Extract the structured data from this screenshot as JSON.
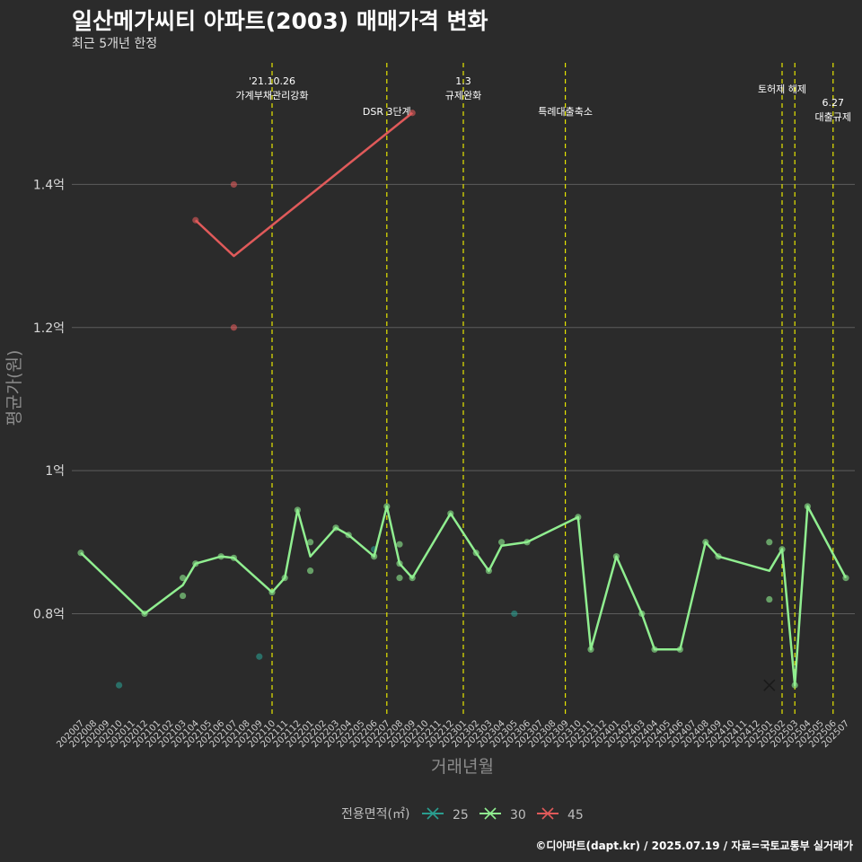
{
  "title": "일산메가씨티 아파트(2003) 매매가격 변화",
  "subtitle": "최근 5개년 한정",
  "footer": "©디아파트(dapt.kr) / 2025.07.19 / 자료=국토교통부 실거래가",
  "chart_data": {
    "type": "line",
    "xlabel": "거래년월",
    "ylabel": "평균가(원)",
    "ylim": [
      0.66,
      1.58
    ],
    "yticks": [
      0.8,
      1.0,
      1.2,
      1.4
    ],
    "ytick_labels": [
      "0.8억",
      "1억",
      "1.2억",
      "1.4억"
    ],
    "grid": true,
    "categories": [
      "202007",
      "202008",
      "202009",
      "202010",
      "202011",
      "202012",
      "202101",
      "202102",
      "202103",
      "202104",
      "202105",
      "202106",
      "202107",
      "202108",
      "202109",
      "202110",
      "202111",
      "202112",
      "202201",
      "202202",
      "202203",
      "202204",
      "202205",
      "202206",
      "202207",
      "202208",
      "202209",
      "202210",
      "202211",
      "202212",
      "202301",
      "202302",
      "202303",
      "202304",
      "202305",
      "202306",
      "202307",
      "202308",
      "202309",
      "202310",
      "202311",
      "202312",
      "202401",
      "202402",
      "202403",
      "202404",
      "202405",
      "202406",
      "202407",
      "202408",
      "202409",
      "202410",
      "202411",
      "202412",
      "202501",
      "202502",
      "202503",
      "202504",
      "202505",
      "202506",
      "202507"
    ],
    "legend_title": "전용면적(㎡)",
    "legend_position": "bottom",
    "series": [
      {
        "name": "25",
        "color": "#2a9d8f",
        "line": [],
        "points": [
          [
            "202010",
            0.7
          ],
          [
            "202109",
            0.74
          ],
          [
            "202206",
            0.89
          ],
          [
            "202305",
            0.8
          ]
        ]
      },
      {
        "name": "30",
        "color": "#90ee90",
        "line": [
          [
            "202007",
            0.885
          ],
          [
            "202012",
            0.8
          ],
          [
            "202103",
            0.84
          ],
          [
            "202104",
            0.87
          ],
          [
            "202106",
            0.88
          ],
          [
            "202107",
            0.878
          ],
          [
            "202110",
            0.83
          ],
          [
            "202111",
            0.85
          ],
          [
            "202112",
            0.945
          ],
          [
            "202201",
            0.88
          ],
          [
            "202203",
            0.92
          ],
          [
            "202204",
            0.91
          ],
          [
            "202206",
            0.88
          ],
          [
            "202207",
            0.95
          ],
          [
            "202208",
            0.87
          ],
          [
            "202209",
            0.85
          ],
          [
            "202212",
            0.94
          ],
          [
            "202302",
            0.885
          ],
          [
            "202303",
            0.86
          ],
          [
            "202304",
            0.895
          ],
          [
            "202306",
            0.9
          ],
          [
            "202310",
            0.935
          ],
          [
            "202311",
            0.75
          ],
          [
            "202401",
            0.88
          ],
          [
            "202403",
            0.8
          ],
          [
            "202404",
            0.75
          ],
          [
            "202406",
            0.75
          ],
          [
            "202408",
            0.9
          ],
          [
            "202409",
            0.88
          ],
          [
            "202501",
            0.86
          ],
          [
            "202502",
            0.89
          ],
          [
            "202503",
            0.7
          ],
          [
            "202504",
            0.95
          ],
          [
            "202507",
            0.85
          ]
        ],
        "points": [
          [
            "202007",
            0.885
          ],
          [
            "202012",
            0.8
          ],
          [
            "202103",
            0.85
          ],
          [
            "202103",
            0.825
          ],
          [
            "202104",
            0.87
          ],
          [
            "202106",
            0.88
          ],
          [
            "202107",
            0.878
          ],
          [
            "202110",
            0.83
          ],
          [
            "202111",
            0.85
          ],
          [
            "202112",
            0.945
          ],
          [
            "202201",
            0.9
          ],
          [
            "202201",
            0.86
          ],
          [
            "202203",
            0.92
          ],
          [
            "202204",
            0.91
          ],
          [
            "202206",
            0.88
          ],
          [
            "202207",
            0.95
          ],
          [
            "202208",
            0.897
          ],
          [
            "202208",
            0.87
          ],
          [
            "202208",
            0.85
          ],
          [
            "202209",
            0.85
          ],
          [
            "202212",
            0.94
          ],
          [
            "202302",
            0.885
          ],
          [
            "202303",
            0.86
          ],
          [
            "202304",
            0.9
          ],
          [
            "202306",
            0.9
          ],
          [
            "202310",
            0.935
          ],
          [
            "202311",
            0.75
          ],
          [
            "202401",
            0.88
          ],
          [
            "202403",
            0.8
          ],
          [
            "202404",
            0.75
          ],
          [
            "202406",
            0.75
          ],
          [
            "202408",
            0.9
          ],
          [
            "202409",
            0.88
          ],
          [
            "202501",
            0.9
          ],
          [
            "202501",
            0.82
          ],
          [
            "202502",
            0.89
          ],
          [
            "202503",
            0.7
          ],
          [
            "202504",
            0.95
          ],
          [
            "202507",
            0.85
          ]
        ],
        "cross": [
          [
            "202501",
            0.7
          ]
        ]
      },
      {
        "name": "45",
        "color": "#e05a5a",
        "line": [
          [
            "202104",
            1.35
          ],
          [
            "202107",
            1.3
          ],
          [
            "202209",
            1.5
          ]
        ],
        "points": [
          [
            "202104",
            1.35
          ],
          [
            "202107",
            1.4
          ],
          [
            "202107",
            1.2
          ],
          [
            "202209",
            1.5
          ]
        ]
      }
    ],
    "events": [
      {
        "month": "202110",
        "labels": [
          "'21.10.26",
          "가계부채관리강화"
        ],
        "row": 0
      },
      {
        "month": "202207",
        "labels": [
          "DSR 3단계"
        ],
        "row": 2
      },
      {
        "month": "202301",
        "labels": [
          "1.3",
          "규제완화"
        ],
        "row": 0
      },
      {
        "month": "202309",
        "labels": [
          "특례대출축소"
        ],
        "row": 2
      },
      {
        "month": "202502",
        "labels": [
          "토허제 해제"
        ],
        "row": 1
      },
      {
        "month": "202503",
        "labels": [],
        "row": 1
      },
      {
        "month": "202506",
        "labels": [
          "6.27",
          "대출규제"
        ],
        "row": 2
      }
    ]
  }
}
